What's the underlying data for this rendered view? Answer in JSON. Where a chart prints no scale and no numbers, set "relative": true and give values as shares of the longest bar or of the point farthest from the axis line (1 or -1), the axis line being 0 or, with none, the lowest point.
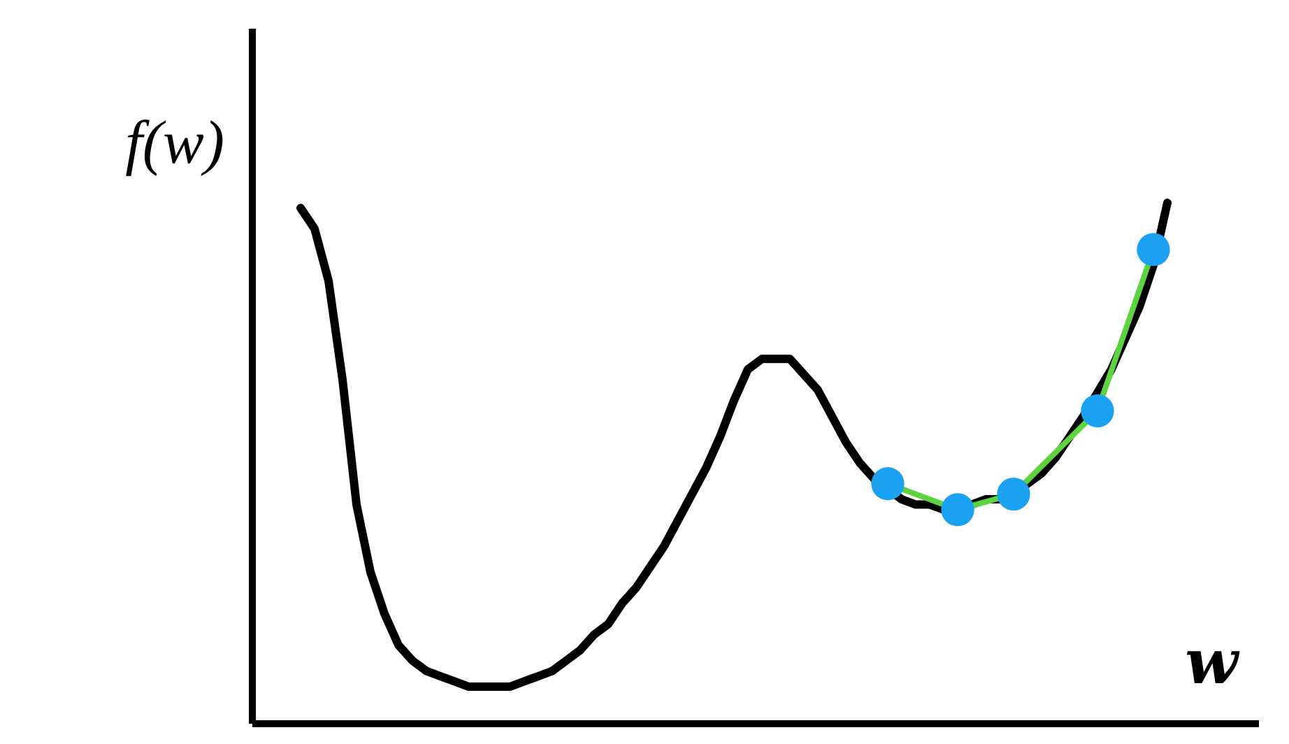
{
  "chart_data": {
    "type": "line",
    "relative": true,
    "xlabel": "w",
    "ylabel": "f(w)",
    "categories": [
      null,
      null,
      null,
      null,
      null,
      null,
      null,
      null,
      null,
      null,
      null,
      null,
      null,
      null,
      null,
      null,
      null,
      null,
      null,
      null,
      null,
      null,
      null,
      null,
      null,
      null,
      null,
      null,
      null,
      null,
      null,
      null,
      null,
      null,
      null,
      null,
      null,
      null,
      null,
      null,
      null,
      null,
      null,
      null,
      null,
      null,
      null,
      null,
      null,
      null,
      null,
      null,
      null,
      null,
      null,
      null,
      null,
      null,
      null,
      null,
      null,
      null,
      null
    ],
    "series": [
      {
        "color": "#000000",
        "values": [
          0.99,
          0.95,
          0.85,
          0.66,
          0.42,
          0.29,
          0.21,
          0.15,
          0.12,
          0.1,
          0.09,
          0.08,
          0.07,
          0.07,
          0.07,
          0.07,
          0.08,
          0.09,
          0.1,
          0.12,
          0.14,
          0.17,
          0.19,
          0.23,
          0.26,
          0.3,
          0.34,
          0.39,
          0.44,
          0.49,
          0.55,
          0.62,
          0.68,
          0.7,
          0.7,
          0.7,
          0.67,
          0.64,
          0.59,
          0.54,
          0.5,
          0.47,
          null,
          0.43,
          0.42,
          0.42,
          0.41,
          null,
          0.42,
          0.43,
          0.43,
          null,
          0.46,
          0.48,
          0.51,
          0.55,
          0.59,
          null,
          0.68,
          0.74,
          0.8,
          0.88,
          1.0
        ]
      },
      {
        "color": "#5cd43f",
        "marker": "circle",
        "values": [
          null,
          null,
          null,
          null,
          null,
          null,
          null,
          null,
          null,
          null,
          null,
          null,
          null,
          null,
          null,
          null,
          null,
          null,
          null,
          null,
          null,
          null,
          null,
          null,
          null,
          null,
          null,
          null,
          null,
          null,
          null,
          null,
          null,
          null,
          null,
          null,
          null,
          null,
          null,
          null,
          null,
          null,
          0.46,
          null,
          null,
          null,
          null,
          0.41,
          null,
          null,
          null,
          0.44,
          null,
          null,
          null,
          null,
          null,
          0.6,
          null,
          null,
          null,
          0.91,
          null
        ],
        "colors": [
          null,
          null,
          null,
          null,
          null,
          null,
          null,
          null,
          null,
          null,
          null,
          null,
          null,
          null,
          null,
          null,
          null,
          null,
          null,
          null,
          null,
          null,
          null,
          null,
          null,
          null,
          null,
          null,
          null,
          null,
          null,
          null,
          null,
          null,
          null,
          null,
          null,
          null,
          null,
          null,
          null,
          null,
          "#1aa1f2",
          null,
          null,
          null,
          null,
          "#1aa1f2",
          null,
          null,
          null,
          "#1aa1f2",
          null,
          null,
          null,
          null,
          null,
          "#1aa1f2",
          null,
          null,
          null,
          "#1aa1f2",
          null
        ]
      }
    ]
  }
}
